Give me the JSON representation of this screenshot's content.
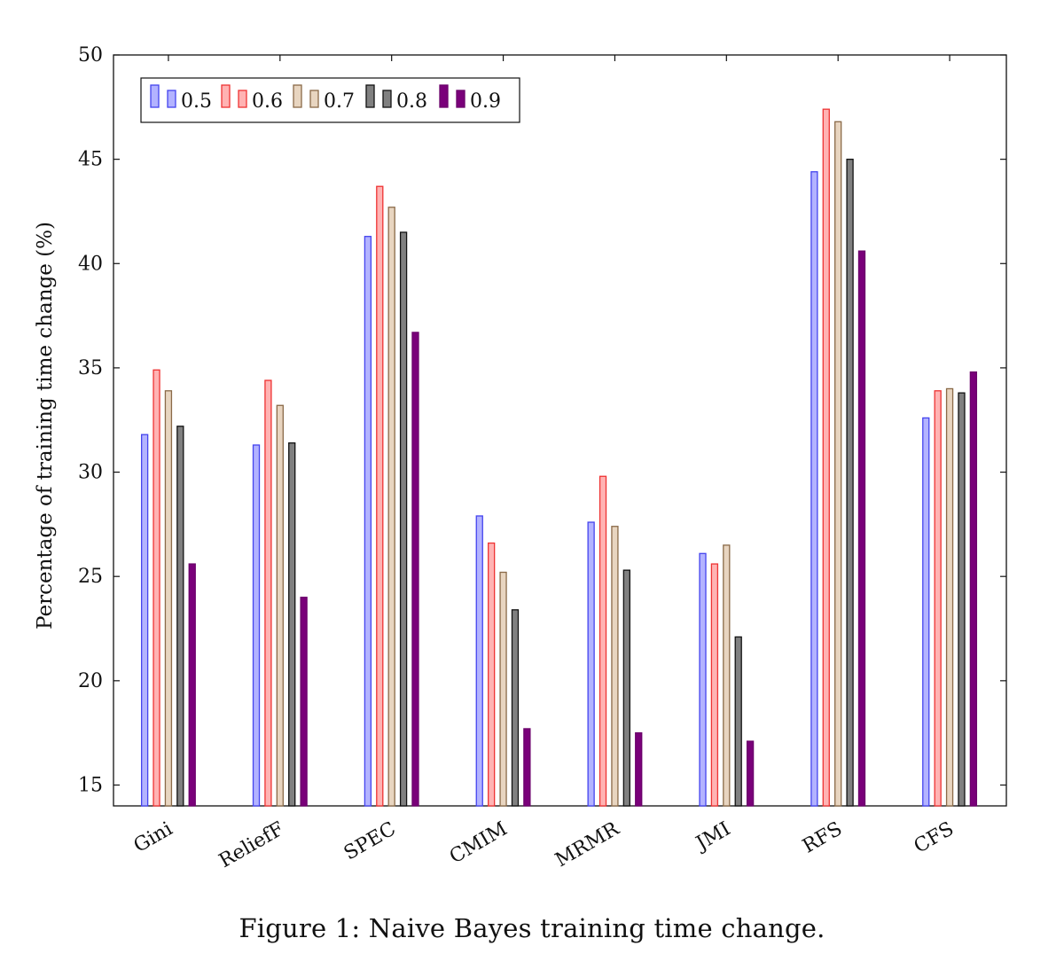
{
  "caption": "Figure 1: Naive Bayes training time change.",
  "chart_data": {
    "type": "bar",
    "title": "",
    "xlabel": "",
    "ylabel": "Percentage of training time change (%)",
    "ylim": [
      14,
      50
    ],
    "yticks": [
      15,
      20,
      25,
      30,
      35,
      40,
      45,
      50
    ],
    "grid": false,
    "legend_position": "top-left",
    "categories": [
      "Gini",
      "ReliefF",
      "SPEC",
      "CMIM",
      "MRMR",
      "JMI",
      "RFS",
      "CFS"
    ],
    "series": [
      {
        "name": "0.5",
        "color": "#4444ee",
        "fill": "#b3b3ff",
        "values": [
          31.8,
          31.3,
          41.3,
          27.9,
          27.6,
          26.1,
          44.4,
          32.6
        ]
      },
      {
        "name": "0.6",
        "color": "#ee3333",
        "fill": "#ffb3b3",
        "values": [
          34.9,
          34.4,
          43.7,
          26.6,
          29.8,
          25.6,
          47.4,
          33.9
        ]
      },
      {
        "name": "0.7",
        "color": "#8a6a48",
        "fill": "#e8d5c0",
        "values": [
          33.9,
          33.2,
          42.7,
          25.2,
          27.4,
          26.5,
          46.8,
          34.0
        ]
      },
      {
        "name": "0.8",
        "color": "#111111",
        "fill": "#808080",
        "values": [
          32.2,
          31.4,
          41.5,
          23.4,
          25.3,
          22.1,
          45.0,
          33.8
        ]
      },
      {
        "name": "0.9",
        "color": "#6b006b",
        "fill": "#7a007a",
        "values": [
          25.6,
          24.0,
          36.7,
          17.7,
          17.5,
          17.1,
          40.6,
          34.8
        ]
      }
    ]
  }
}
